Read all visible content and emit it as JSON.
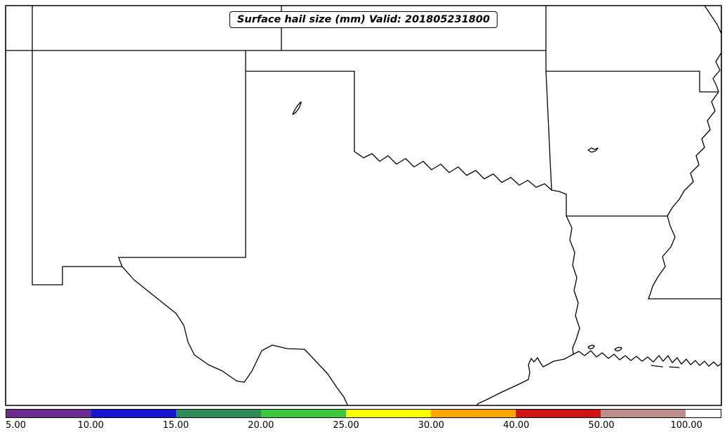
{
  "figure": {
    "title": "Surface hail size (mm) Valid: 201805231800",
    "background_color": "#FFFFFF",
    "map_line_color": "#000000"
  },
  "colorbar": {
    "tick_labels": [
      "5.00",
      "10.00",
      "15.00",
      "20.00",
      "25.00",
      "30.00",
      "40.00",
      "50.00",
      "100.00"
    ],
    "segment_colors": [
      "#6A2C91",
      "#1414CC",
      "#2E8B57",
      "#3CC83C",
      "#FFFF00",
      "#FFA500",
      "#CC1414",
      "#BC8F8F",
      "#FFFFFF"
    ],
    "outline_color": "#000000"
  },
  "chart_data": {
    "type": "heatmap",
    "title": "Surface hail size (mm) Valid: 201805231800",
    "colorbar_ticks": [
      5.0,
      10.0,
      15.0,
      20.0,
      25.0,
      30.0,
      40.0,
      50.0,
      100.0
    ],
    "colorbar_colors": [
      "#6A2C91",
      "#1414CC",
      "#2E8B57",
      "#3CC83C",
      "#FFFF00",
      "#FFA500",
      "#CC1414",
      "#BC8F8F",
      "#FFFFFF"
    ]
  }
}
